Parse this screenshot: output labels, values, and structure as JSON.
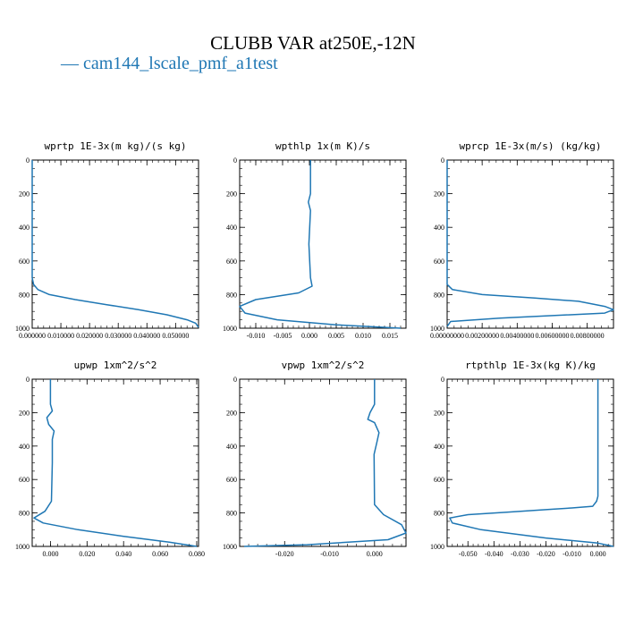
{
  "figure": {
    "title": "CLUBB VAR at250E,-12N",
    "legend_label": "cam144_lscale_pmf_a1test",
    "legend_marker": "—",
    "line_color": "#1f77b4"
  },
  "chart_data": [
    {
      "type": "line",
      "title": "wprtp  1E-3x(m kg)/(s kg)",
      "xlim": [
        0,
        0.058
      ],
      "ylim": [
        1000,
        0
      ],
      "x_ticks": [
        0,
        0.01,
        0.02,
        0.03,
        0.04,
        0.05
      ],
      "x_tick_labels": [
        "0.000000",
        "0.010000",
        "0.020000",
        "0.030000",
        "0.040000",
        "0.050000"
      ],
      "y_ticks": [
        0,
        200,
        400,
        600,
        800,
        1000
      ],
      "y_tick_labels": [
        "0",
        "200",
        "400",
        "600",
        "800",
        "1000"
      ],
      "series": [
        {
          "x": [
            0,
            0,
            0.0005,
            0.002,
            0.006,
            0.015,
            0.026,
            0.037,
            0.047,
            0.054,
            0.057,
            0.058
          ],
          "y": [
            0,
            700,
            740,
            770,
            800,
            830,
            860,
            890,
            920,
            950,
            970,
            995
          ]
        }
      ]
    },
    {
      "type": "line",
      "title": "wpthlp  1x(m K)/s",
      "xlim": [
        -0.013,
        0.018
      ],
      "ylim": [
        1000,
        0
      ],
      "x_ticks": [
        -0.01,
        -0.005,
        0,
        0.005,
        0.01,
        0.015
      ],
      "x_tick_labels": [
        "-0.010",
        "-0.005",
        "0.000",
        "0.005",
        "0.010",
        "0.015"
      ],
      "y_ticks": [
        0,
        200,
        400,
        600,
        800,
        1000
      ],
      "y_tick_labels": [
        "0",
        "200",
        "400",
        "600",
        "800",
        "1000"
      ],
      "series": [
        {
          "x": [
            0.0002,
            0.0002,
            -0.0002,
            0.0002,
            -0.0001,
            0.0002,
            0.0005,
            -0.002,
            -0.01,
            -0.013,
            -0.012,
            -0.006,
            0.005,
            0.017
          ],
          "y": [
            0,
            200,
            250,
            300,
            500,
            700,
            750,
            790,
            830,
            870,
            910,
            950,
            980,
            1000
          ]
        }
      ]
    },
    {
      "type": "line",
      "title": "wprcp  1E-3x(m/s) (kg/kg)",
      "xlim": [
        0,
        0.0095
      ],
      "ylim": [
        1000,
        0
      ],
      "x_ticks": [
        0,
        0.002,
        0.004,
        0.006,
        0.008
      ],
      "x_tick_labels": [
        "0.00000000",
        "0.00200000",
        "0.00400000",
        "0.00600000",
        "0.00800000"
      ],
      "y_ticks": [
        0,
        200,
        400,
        600,
        800,
        1000
      ],
      "y_tick_labels": [
        "0",
        "200",
        "400",
        "600",
        "800",
        "1000"
      ],
      "series": [
        {
          "x": [
            0,
            0,
            0.0003,
            0.002,
            0.005,
            0.0075,
            0.009,
            0.0095,
            0.009,
            0.003,
            0.0002,
            0
          ],
          "y": [
            0,
            740,
            770,
            800,
            820,
            840,
            870,
            890,
            910,
            940,
            960,
            990
          ]
        }
      ]
    },
    {
      "type": "line",
      "title": "upwp  1xm^2/s^2",
      "xlim": [
        -0.01,
        0.081
      ],
      "ylim": [
        1000,
        0
      ],
      "x_ticks": [
        0,
        0.02,
        0.04,
        0.06,
        0.08
      ],
      "x_tick_labels": [
        "0.000",
        "0.020",
        "0.040",
        "0.060",
        "0.080"
      ],
      "y_ticks": [
        0,
        200,
        400,
        600,
        800,
        1000
      ],
      "y_tick_labels": [
        "0",
        "200",
        "400",
        "600",
        "800",
        "1000"
      ],
      "series": [
        {
          "x": [
            0,
            0,
            0.001,
            -0.002,
            -0.001,
            0.002,
            0.001,
            0.001,
            0.0005,
            -0.003,
            -0.009,
            -0.004,
            0.015,
            0.04,
            0.065,
            0.08
          ],
          "y": [
            0,
            150,
            190,
            230,
            270,
            310,
            360,
            500,
            730,
            790,
            830,
            860,
            900,
            940,
            975,
            1000
          ]
        }
      ]
    },
    {
      "type": "line",
      "title": "vpwp  1xm^2/s^2",
      "xlim": [
        -0.03,
        0.007
      ],
      "ylim": [
        1000,
        0
      ],
      "x_ticks": [
        -0.02,
        -0.01,
        0
      ],
      "x_tick_labels": [
        "-0.020",
        "-0.010",
        "0.000"
      ],
      "y_ticks": [
        0,
        200,
        400,
        600,
        800,
        1000
      ],
      "y_tick_labels": [
        "0",
        "200",
        "400",
        "600",
        "800",
        "1000"
      ],
      "series": [
        {
          "x": [
            0,
            0,
            -0.001,
            -0.0015,
            0,
            0.001,
            0.0005,
            -0.0001,
            0,
            0.002,
            0.006,
            0.007,
            0.003,
            -0.015,
            -0.029
          ],
          "y": [
            0,
            150,
            200,
            240,
            260,
            320,
            380,
            450,
            750,
            810,
            870,
            920,
            960,
            990,
            1000
          ]
        }
      ]
    },
    {
      "type": "line",
      "title": "rtpthlp  1E-3x(kg K)/kg",
      "xlim": [
        -0.058,
        0.006
      ],
      "ylim": [
        1000,
        0
      ],
      "x_ticks": [
        -0.05,
        -0.04,
        -0.03,
        -0.02,
        -0.01,
        0
      ],
      "x_tick_labels": [
        "-0.050",
        "-0.040",
        "-0.030",
        "-0.020",
        "-0.010",
        "0.000"
      ],
      "y_ticks": [
        0,
        200,
        400,
        600,
        800,
        1000
      ],
      "y_tick_labels": [
        "0",
        "200",
        "400",
        "600",
        "800",
        "1000"
      ],
      "series": [
        {
          "x": [
            0,
            0,
            -0.0005,
            -0.002,
            -0.01,
            -0.02,
            -0.035,
            -0.05,
            -0.057,
            -0.056,
            -0.045,
            -0.02,
            0,
            0.006
          ],
          "y": [
            0,
            700,
            730,
            760,
            770,
            780,
            795,
            810,
            830,
            860,
            900,
            950,
            980,
            1000
          ]
        }
      ]
    }
  ]
}
